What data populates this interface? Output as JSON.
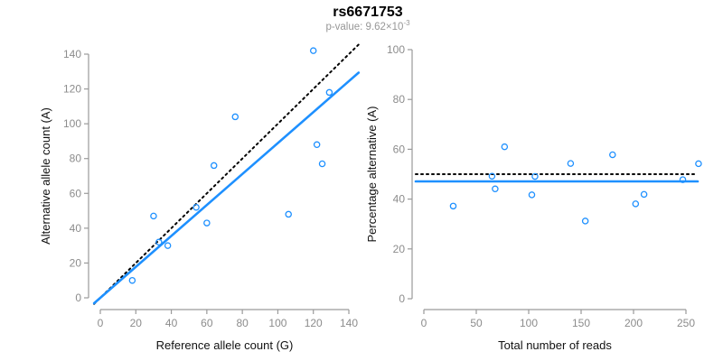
{
  "header": {
    "title": "rs6671753",
    "pvalue_label": "p-value: 9.62×10",
    "pvalue_exponent": "-3"
  },
  "colors": {
    "accent_blue": "#1E90FF",
    "line_black": "#000000",
    "axis_gray": "#9a9a9a",
    "tick_label_gray": "#8c8c8c",
    "axis_title_color": "#111111"
  },
  "chart_data": [
    {
      "type": "scatter",
      "panel": "left",
      "xlabel": "Reference allele count (G)",
      "ylabel": "Alternative allele count (A)",
      "xlim": [
        0,
        140
      ],
      "ylim": [
        0,
        140
      ],
      "xticks": [
        0,
        20,
        40,
        60,
        80,
        100,
        120,
        140
      ],
      "yticks": [
        0,
        20,
        40,
        60,
        80,
        100,
        120,
        140
      ],
      "grid": false,
      "legend": "none",
      "series": [
        {
          "name": "allele-counts",
          "marker": "open-circle",
          "color": "#1E90FF",
          "points": [
            [
              18,
              10
            ],
            [
              30,
              47
            ],
            [
              33,
              32
            ],
            [
              38,
              30
            ],
            [
              54,
              52
            ],
            [
              60,
              43
            ],
            [
              64,
              76
            ],
            [
              76,
              104
            ],
            [
              106,
              48
            ],
            [
              120,
              142
            ],
            [
              122,
              88
            ],
            [
              125,
              77
            ],
            [
              129,
              118
            ]
          ]
        }
      ],
      "lines": [
        {
          "name": "identity-line",
          "kind": "abline",
          "slope": 1,
          "intercept": 0,
          "style": "dotted",
          "color": "#000000"
        },
        {
          "name": "fit-line",
          "kind": "abline",
          "slope": 0.889,
          "intercept": 0,
          "style": "solid",
          "color": "#1E90FF"
        }
      ]
    },
    {
      "type": "scatter",
      "panel": "right",
      "xlabel": "Total number of reads",
      "ylabel": "Percentage alternative (A)",
      "xlim": [
        0,
        262
      ],
      "ylim": [
        0,
        100
      ],
      "xticks": [
        0,
        50,
        100,
        150,
        200,
        250
      ],
      "yticks": [
        0,
        20,
        40,
        60,
        80,
        100
      ],
      "grid": false,
      "legend": "none",
      "series": [
        {
          "name": "percentage-alternative",
          "marker": "open-circle",
          "color": "#1E90FF",
          "points": [
            [
              28,
              37.2
            ],
            [
              65,
              49.2
            ],
            [
              68,
              44.1
            ],
            [
              77,
              61.0
            ],
            [
              103,
              41.7
            ],
            [
              106,
              49.1
            ],
            [
              140,
              54.3
            ],
            [
              154,
              31.2
            ],
            [
              180,
              57.8
            ],
            [
              202,
              38.1
            ],
            [
              210,
              41.9
            ],
            [
              247,
              47.8
            ],
            [
              262,
              54.2
            ]
          ]
        }
      ],
      "lines": [
        {
          "name": "expected-50pct-line",
          "kind": "hline",
          "y": 50,
          "style": "dotted",
          "color": "#000000"
        },
        {
          "name": "mean-percentage-line",
          "kind": "hline",
          "y": 47.1,
          "style": "solid",
          "color": "#1E90FF"
        }
      ]
    }
  ]
}
